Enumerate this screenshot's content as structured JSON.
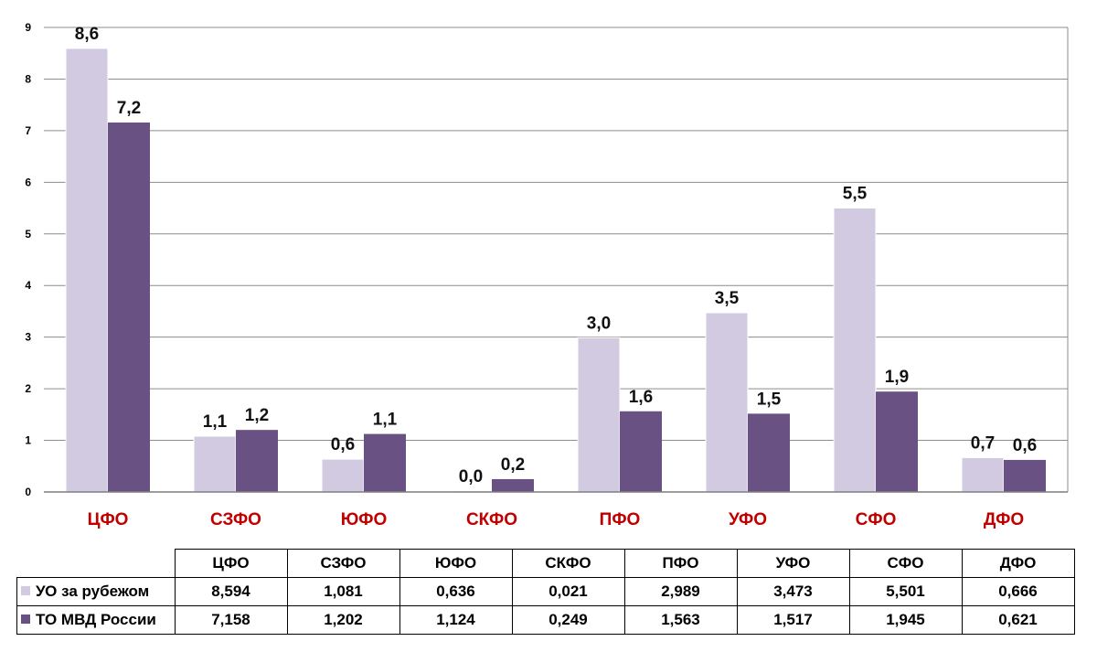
{
  "chart_data": {
    "type": "bar",
    "categories": [
      "ЦФО",
      "СЗФО",
      "ЮФО",
      "СКФО",
      "ПФО",
      "УФО",
      "СФО",
      "ДФО"
    ],
    "series": [
      {
        "name": "УО за рубежом",
        "color": "#d1cae0",
        "values": [
          8.594,
          1.081,
          0.636,
          0.021,
          2.989,
          3.473,
          5.501,
          0.666
        ],
        "labels": [
          "8,6",
          "1,1",
          "0,6",
          "0,0",
          "3,0",
          "3,5",
          "5,5",
          "0,7"
        ],
        "table_values": [
          "8,594",
          "1,081",
          "0,636",
          "0,021",
          "2,989",
          "3,473",
          "5,501",
          "0,666"
        ]
      },
      {
        "name": "ТО МВД России",
        "color": "#6a5184",
        "values": [
          7.158,
          1.202,
          1.124,
          0.249,
          1.563,
          1.517,
          1.945,
          0.621
        ],
        "labels": [
          "7,2",
          "1,2",
          "1,1",
          "0,2",
          "1,6",
          "1,5",
          "1,9",
          "0,6"
        ],
        "table_values": [
          "7,158",
          "1,202",
          "1,124",
          "0,249",
          "1,563",
          "1,517",
          "1,945",
          "0,621"
        ]
      }
    ],
    "y_ticks": [
      "0",
      "1",
      "2",
      "3",
      "4",
      "5",
      "6",
      "7",
      "8",
      "9"
    ],
    "ylim": [
      0,
      9
    ],
    "grid": true,
    "category_label_color": "#c00000",
    "legend": "data table below chart"
  }
}
